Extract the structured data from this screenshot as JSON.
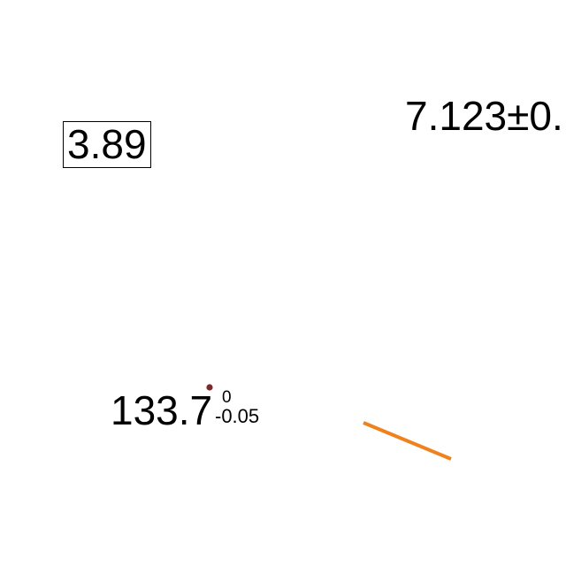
{
  "boxed_value": "3.89",
  "plus_minus_value": "7.123±0.",
  "value_with_bounds": {
    "main": "133.7",
    "upper": "0",
    "lower": "-0.05"
  },
  "colors": {
    "text": "#000000",
    "dot": "#7a2a2a",
    "line": "#f0821e"
  }
}
